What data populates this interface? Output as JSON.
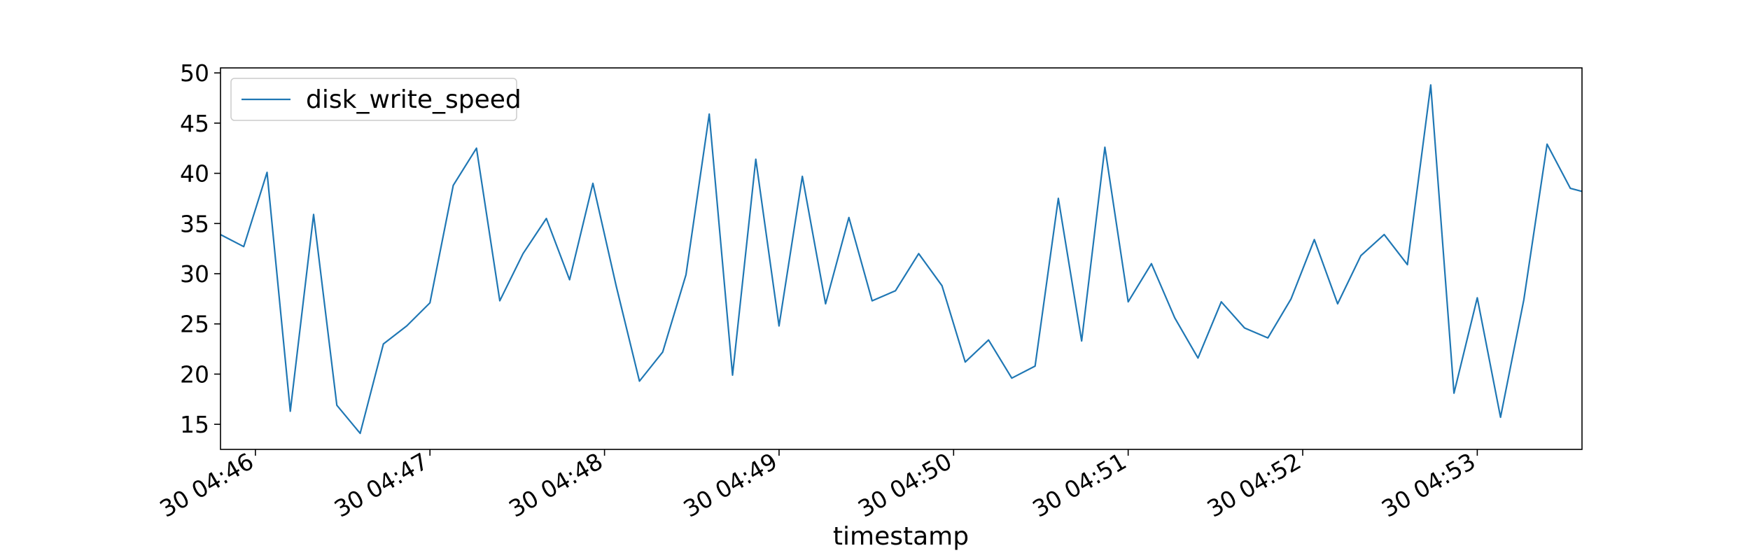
{
  "chart_data": {
    "type": "line",
    "title": "",
    "xlabel": "timestamp",
    "ylabel": "",
    "x_tick_labels": [
      "30 04:46",
      "30 04:47",
      "30 04:48",
      "30 04:49",
      "30 04:50",
      "30 04:51",
      "30 04:52",
      "30 04:53"
    ],
    "y_ticks": [
      15,
      20,
      25,
      30,
      35,
      40,
      45,
      50
    ],
    "ylim": [
      12.5,
      50.5
    ],
    "xlim": [
      "04:45:48",
      "04:53:36"
    ],
    "legend": "upper left",
    "grid": false,
    "series": [
      {
        "name": "disk_write_speed",
        "color": "#1f77b4",
        "x": [
          "04:45:48",
          "04:45:56",
          "04:46:04",
          "04:46:12",
          "04:46:20",
          "04:46:28",
          "04:46:36",
          "04:46:44",
          "04:46:52",
          "04:47:00",
          "04:47:08",
          "04:47:16",
          "04:47:24",
          "04:47:32",
          "04:47:40",
          "04:47:48",
          "04:47:56",
          "04:48:04",
          "04:48:12",
          "04:48:20",
          "04:48:28",
          "04:48:36",
          "04:48:44",
          "04:48:52",
          "04:49:00",
          "04:49:08",
          "04:49:16",
          "04:49:24",
          "04:49:32",
          "04:49:40",
          "04:49:48",
          "04:49:56",
          "04:50:04",
          "04:50:12",
          "04:50:20",
          "04:50:28",
          "04:50:36",
          "04:50:44",
          "04:50:52",
          "04:51:00",
          "04:51:08",
          "04:51:16",
          "04:51:24",
          "04:51:32",
          "04:51:40",
          "04:51:48",
          "04:51:56",
          "04:52:04",
          "04:52:12",
          "04:52:20",
          "04:52:28",
          "04:52:36",
          "04:52:44",
          "04:52:52",
          "04:53:00",
          "04:53:08",
          "04:53:16",
          "04:53:24",
          "04:53:32",
          "04:53:36"
        ],
        "values": [
          33.9,
          32.7,
          40.1,
          16.3,
          35.9,
          16.9,
          14.1,
          23.0,
          24.8,
          27.1,
          38.8,
          42.5,
          27.3,
          32.0,
          35.5,
          29.4,
          39.0,
          28.8,
          19.3,
          22.2,
          29.9,
          45.9,
          19.9,
          41.4,
          24.8,
          39.7,
          27.0,
          35.6,
          27.3,
          28.3,
          32.0,
          28.8,
          21.2,
          23.4,
          19.6,
          20.8,
          37.5,
          23.3,
          42.6,
          27.2,
          31.0,
          25.6,
          21.6,
          27.2,
          24.6,
          23.6,
          27.5,
          33.4,
          27.0,
          31.8,
          33.9,
          30.9,
          48.8,
          18.1,
          27.6,
          15.7,
          27.4,
          42.9,
          38.5,
          38.2
        ]
      }
    ]
  }
}
